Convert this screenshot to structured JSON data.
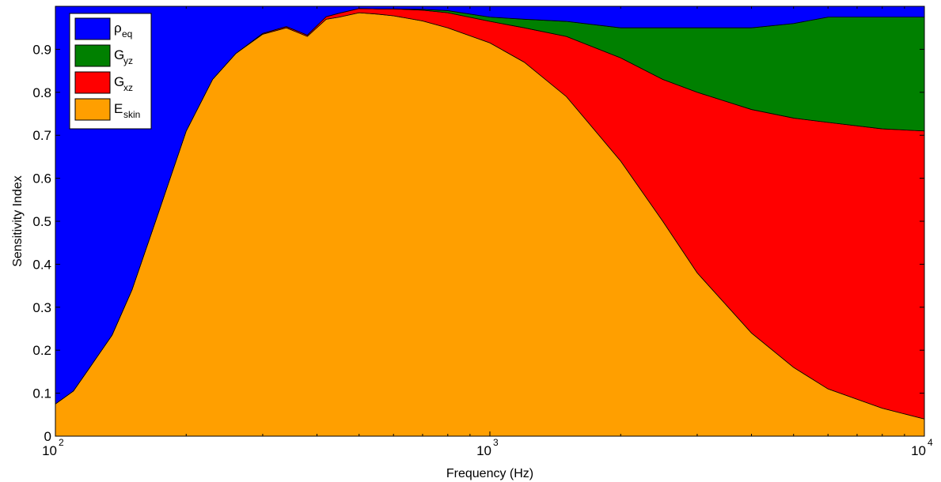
{
  "chart_data": {
    "type": "area",
    "stacked": true,
    "title": "",
    "xlabel": "Frequency (Hz)",
    "ylabel": "Sensitivity Index",
    "xscale": "log",
    "xlim": [
      100,
      10000
    ],
    "ylim": [
      0,
      1
    ],
    "grid": false,
    "legend_position": "top-left",
    "xticks": [
      {
        "value": 100,
        "base": "10",
        "exp": "2"
      },
      {
        "value": 1000,
        "base": "10",
        "exp": "3"
      },
      {
        "value": 10000,
        "base": "10",
        "exp": "4"
      }
    ],
    "yticks": [
      {
        "value": 0,
        "label": "0"
      },
      {
        "value": 0.1,
        "label": "0.1"
      },
      {
        "value": 0.2,
        "label": "0.2"
      },
      {
        "value": 0.3,
        "label": "0.3"
      },
      {
        "value": 0.4,
        "label": "0.4"
      },
      {
        "value": 0.5,
        "label": "0.5"
      },
      {
        "value": 0.6,
        "label": "0.6"
      },
      {
        "value": 0.7,
        "label": "0.7"
      },
      {
        "value": 0.8,
        "label": "0.8"
      },
      {
        "value": 0.9,
        "label": "0.9"
      }
    ],
    "x": [
      100,
      110,
      120,
      135,
      150,
      170,
      200,
      230,
      260,
      300,
      340,
      380,
      420,
      450,
      500,
      550,
      600,
      700,
      800,
      1000,
      1200,
      1500,
      2000,
      2500,
      3000,
      4000,
      5000,
      6000,
      8000,
      10000
    ],
    "series": [
      {
        "name_main": "E",
        "name_sub": "skin",
        "color": "#FF9F00",
        "values": [
          0.075,
          0.105,
          0.16,
          0.235,
          0.34,
          0.5,
          0.71,
          0.83,
          0.89,
          0.935,
          0.95,
          0.93,
          0.97,
          0.975,
          0.985,
          0.982,
          0.978,
          0.966,
          0.95,
          0.915,
          0.87,
          0.79,
          0.64,
          0.5,
          0.38,
          0.24,
          0.16,
          0.11,
          0.065,
          0.04
        ]
      },
      {
        "name_main": "G",
        "name_sub": "xz",
        "color": "#FF0000",
        "values": [
          0,
          0,
          0,
          0,
          0,
          0,
          0,
          0,
          0,
          0.002,
          0.003,
          0.003,
          0.006,
          0.009,
          0.01,
          0.012,
          0.016,
          0.025,
          0.035,
          0.05,
          0.08,
          0.14,
          0.24,
          0.33,
          0.42,
          0.52,
          0.58,
          0.62,
          0.65,
          0.67
        ]
      },
      {
        "name_main": "G",
        "name_sub": "yz",
        "color": "#008000",
        "values": [
          0,
          0,
          0,
          0,
          0,
          0,
          0,
          0,
          0,
          0,
          0,
          0,
          0,
          0,
          0,
          0,
          0,
          0.002,
          0.005,
          0.01,
          0.02,
          0.035,
          0.07,
          0.12,
          0.15,
          0.19,
          0.22,
          0.245,
          0.26,
          0.265
        ]
      },
      {
        "name_main": "ρ",
        "name_sub": "eq",
        "color": "#0000FF",
        "values": [
          0.925,
          0.895,
          0.84,
          0.765,
          0.66,
          0.5,
          0.29,
          0.17,
          0.11,
          0.063,
          0.047,
          0.067,
          0.024,
          0.016,
          0.005,
          0.006,
          0.006,
          0.007,
          0.01,
          0.025,
          0.03,
          0.035,
          0.05,
          0.05,
          0.05,
          0.05,
          0.04,
          0.025,
          0.025,
          0.025
        ]
      }
    ]
  }
}
